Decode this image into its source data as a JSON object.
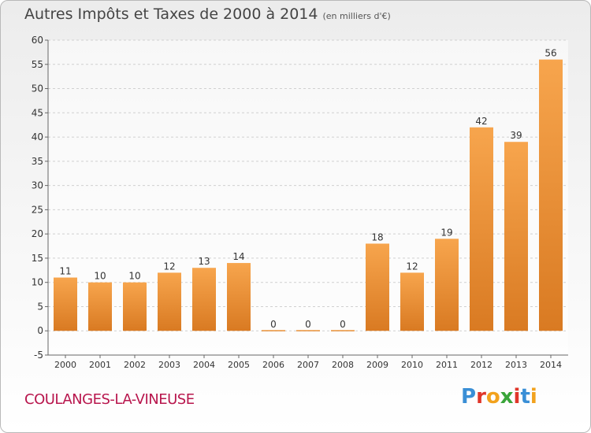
{
  "header": {
    "title": "Autres Impôts et Taxes de 2000 à 2014",
    "unit": "(en milliers d'€)"
  },
  "footer": {
    "commune": "COULANGES-LA-VINEUSE",
    "brand": "Proxiti",
    "brand_letters": [
      {
        "ch": "P",
        "color": "#3a8fd6"
      },
      {
        "ch": "r",
        "color": "#e0362a"
      },
      {
        "ch": "o",
        "color": "#f2a21d"
      },
      {
        "ch": "x",
        "color": "#3aa53a"
      },
      {
        "ch": "i",
        "color": "#e0362a"
      },
      {
        "ch": "t",
        "color": "#3a8fd6"
      },
      {
        "ch": "i",
        "color": "#f2a21d"
      }
    ]
  },
  "colors": {
    "bar_light": "#f7a54d",
    "bar_dark": "#d97a22",
    "grid": "#d0d0d0",
    "axis_text": "#333333",
    "commune": "#b8164d"
  },
  "chart_data": {
    "type": "bar",
    "title": "Autres Impôts et Taxes de 2000 à 2014",
    "xlabel": "",
    "ylabel": "",
    "categories": [
      "2000",
      "2001",
      "2002",
      "2003",
      "2004",
      "2005",
      "2006",
      "2007",
      "2008",
      "2009",
      "2010",
      "2011",
      "2012",
      "2013",
      "2014"
    ],
    "values": [
      11,
      10,
      10,
      12,
      13,
      14,
      0,
      0,
      0,
      18,
      12,
      19,
      42,
      39,
      56
    ],
    "ylim": [
      -5,
      60
    ],
    "yticks": [
      -5,
      0,
      5,
      10,
      15,
      20,
      25,
      30,
      35,
      40,
      45,
      50,
      55,
      60
    ],
    "grid": true,
    "legend": "none"
  }
}
